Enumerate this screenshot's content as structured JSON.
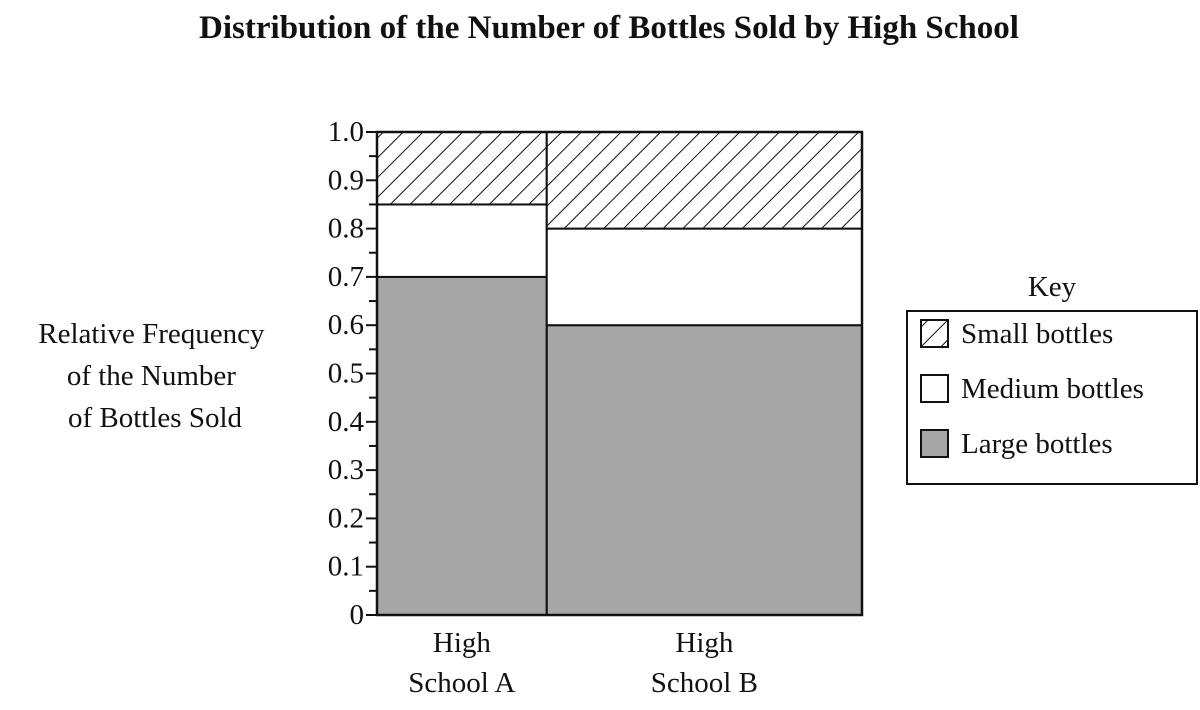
{
  "chart_data": {
    "type": "bar",
    "subtype": "mosaic",
    "title": "Distribution of the Number of Bottles Sold by High School",
    "ylabel": [
      "Relative Frequency",
      "of the Number",
      "of Bottles Sold"
    ],
    "xlabel": "",
    "ylim": [
      0,
      1.0
    ],
    "yticks": [
      "0",
      "0.1",
      "0.2",
      "0.3",
      "0.4",
      "0.5",
      "0.6",
      "0.7",
      "0.8",
      "0.9",
      "1.0"
    ],
    "categories": [
      {
        "label_lines": [
          "High",
          "School A"
        ],
        "relative_width": 0.35
      },
      {
        "label_lines": [
          "High",
          "School B"
        ],
        "relative_width": 0.65
      }
    ],
    "series": [
      {
        "name": "Large bottles",
        "values": [
          0.7,
          0.6
        ],
        "fill": "#a6a6a6",
        "pattern": "solid"
      },
      {
        "name": "Medium bottles",
        "values": [
          0.15,
          0.2
        ],
        "fill": "#ffffff",
        "pattern": "solid"
      },
      {
        "name": "Small bottles",
        "values": [
          0.15,
          0.2
        ],
        "fill": "#ffffff",
        "pattern": "hatch"
      }
    ],
    "legend": {
      "title": "Key",
      "placement": "right",
      "entries": [
        "Small bottles",
        "Medium bottles",
        "Large bottles"
      ]
    },
    "grid": false
  }
}
